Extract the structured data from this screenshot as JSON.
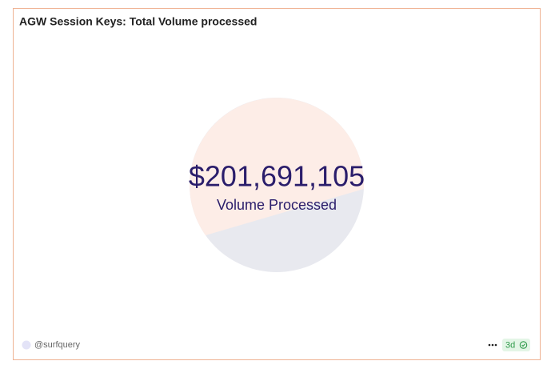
{
  "header": {
    "title": "AGW Session Keys: Total Volume processed"
  },
  "counter": {
    "value": "$201,691,105",
    "label": "Volume Processed"
  },
  "footer": {
    "author": "@surfquery",
    "age": "3d"
  }
}
